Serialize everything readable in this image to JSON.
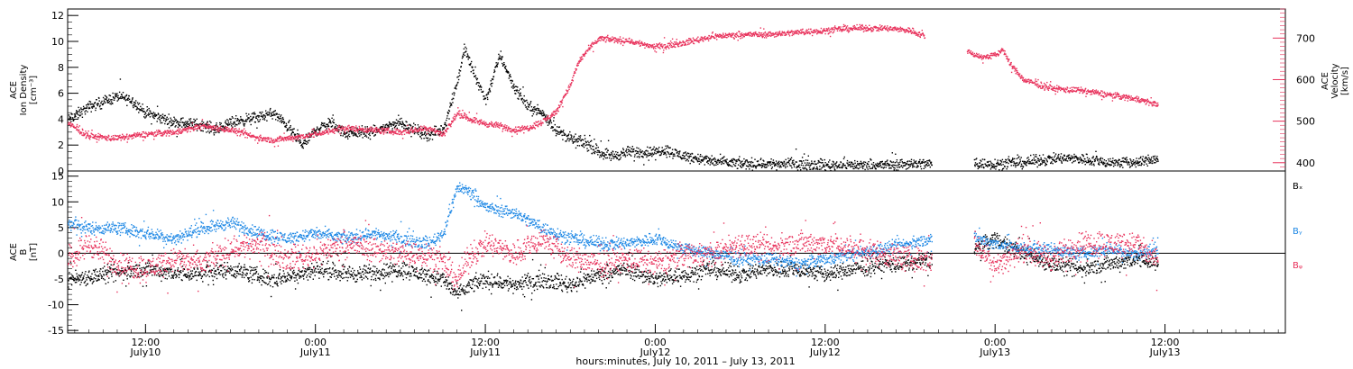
{
  "xlabel": "hours:minutes, July 10, 2011 – July 13, 2011",
  "chart_data": [
    {
      "type": "scatter",
      "panel": "plasma",
      "ylabel_lines": [
        "ACE",
        "Ion Density",
        "[cm⁻³]"
      ],
      "ylim": [
        0,
        12.5
      ],
      "yticks": [
        0,
        2,
        4,
        6,
        8,
        10,
        12
      ],
      "right_axis": {
        "ylabel_lines": [
          "ACE",
          "Velocity",
          "[km/s]"
        ],
        "ylim": [
          380,
          770
        ],
        "yticks": [
          400,
          500,
          600,
          700
        ]
      },
      "x_hours_range": [
        6.5,
        92.5
      ],
      "x_ticks": [
        {
          "hour": 12,
          "time": "12:00",
          "date": "July10"
        },
        {
          "hour": 24,
          "time": "0:00",
          "date": "July11"
        },
        {
          "hour": 36,
          "time": "12:00",
          "date": "July11"
        },
        {
          "hour": 48,
          "time": "0:00",
          "date": "July12"
        },
        {
          "hour": 60,
          "time": "12:00",
          "date": "July12"
        },
        {
          "hour": 72,
          "time": "0:00",
          "date": "July13"
        },
        {
          "hour": 84,
          "time": "12:00",
          "date": "July13"
        }
      ],
      "series": [
        {
          "color": "#000000",
          "axis": "left",
          "noise": 0.35,
          "points": [
            [
              6.5,
              4.0
            ],
            [
              8,
              5.0
            ],
            [
              10,
              5.8
            ],
            [
              11,
              5.5
            ],
            [
              12,
              4.5
            ],
            [
              14,
              3.8
            ],
            [
              16,
              3.6
            ],
            [
              17,
              3.2
            ],
            [
              18,
              3.8
            ],
            [
              20,
              4.2
            ],
            [
              21,
              4.5
            ],
            [
              22,
              3.5
            ],
            [
              23,
              2.0
            ],
            [
              24,
              3.2
            ],
            [
              25,
              3.8
            ],
            [
              26,
              3.0
            ],
            [
              28,
              3.0
            ],
            [
              29,
              3.5
            ],
            [
              30,
              3.8
            ],
            [
              31,
              3.2
            ],
            [
              32,
              2.8
            ],
            [
              33,
              3.3
            ],
            [
              34,
              7.0
            ],
            [
              34.5,
              9.5
            ],
            [
              35,
              8.0
            ],
            [
              36,
              5.5
            ],
            [
              37,
              9.0
            ],
            [
              38,
              6.5
            ],
            [
              39,
              5.0
            ],
            [
              40,
              4.5
            ],
            [
              41,
              3.2
            ],
            [
              42,
              2.5
            ],
            [
              43,
              2.2
            ],
            [
              44,
              1.5
            ],
            [
              45,
              1.2
            ],
            [
              46,
              1.5
            ],
            [
              48,
              1.5
            ],
            [
              48.5,
              1.7
            ],
            [
              50,
              1.2
            ],
            [
              52,
              0.8
            ],
            [
              54,
              0.6
            ],
            [
              56,
              0.6
            ],
            [
              58,
              0.6
            ],
            [
              60,
              0.5
            ],
            [
              62,
              0.5
            ],
            [
              64,
              0.5
            ],
            [
              66,
              0.6
            ],
            [
              67.5,
              0.6
            ]
          ],
          "gaps": [
            [
              67.5,
              70.5
            ]
          ],
          "points2": [
            [
              70.5,
              0.6
            ],
            [
              72,
              0.6
            ],
            [
              74,
              0.7
            ],
            [
              76,
              1.0
            ],
            [
              78,
              1.0
            ],
            [
              80,
              0.7
            ],
            [
              82,
              0.7
            ],
            [
              83.5,
              1.0
            ]
          ]
        },
        {
          "color": "#e8325c",
          "axis": "right",
          "noise": 6,
          "points": [
            [
              6.5,
              495
            ],
            [
              8,
              465
            ],
            [
              10,
              460
            ],
            [
              12,
              470
            ],
            [
              14,
              475
            ],
            [
              16,
              490
            ],
            [
              18,
              480
            ],
            [
              20,
              460
            ],
            [
              21,
              455
            ],
            [
              22,
              460
            ],
            [
              24,
              470
            ],
            [
              26,
              485
            ],
            [
              28,
              480
            ],
            [
              30,
              475
            ],
            [
              32,
              485
            ],
            [
              33,
              470
            ],
            [
              34,
              520
            ],
            [
              35,
              505
            ],
            [
              36,
              495
            ],
            [
              37,
              490
            ],
            [
              38,
              480
            ],
            [
              39,
              485
            ],
            [
              40,
              500
            ],
            [
              41,
              525
            ],
            [
              41.5,
              560
            ],
            [
              42,
              590
            ],
            [
              42.5,
              640
            ],
            [
              43,
              665
            ],
            [
              44,
              700
            ],
            [
              46,
              695
            ],
            [
              48,
              680
            ],
            [
              50,
              690
            ],
            [
              52,
              705
            ],
            [
              54,
              710
            ],
            [
              56,
              710
            ],
            [
              58,
              715
            ],
            [
              60,
              720
            ],
            [
              62,
              725
            ],
            [
              64,
              725
            ],
            [
              66,
              720
            ],
            [
              67,
              705
            ]
          ],
          "gaps": [
            [
              67,
              70
            ]
          ],
          "points2": [
            [
              70,
              670
            ],
            [
              71,
              655
            ],
            [
              72,
              660
            ],
            [
              72.5,
              675
            ],
            [
              73,
              640
            ],
            [
              74,
              600
            ],
            [
              76,
              580
            ],
            [
              78,
              575
            ],
            [
              80,
              565
            ],
            [
              82,
              555
            ],
            [
              83,
              545
            ],
            [
              83.5,
              540
            ]
          ]
        }
      ]
    },
    {
      "type": "scatter",
      "panel": "magnetic-field",
      "ylabel_lines": [
        "ACE",
        "B",
        "[nT]"
      ],
      "ylim": [
        -15.5,
        16
      ],
      "yticks": [
        -15,
        -10,
        -5,
        0,
        5,
        10,
        15
      ],
      "x_hours_range": [
        6.5,
        92.5
      ],
      "legend": [
        "Bₓ",
        "Bᵧ",
        "Bᵩ"
      ],
      "series": [
        {
          "name": "Bx",
          "color": "#000000",
          "noise": 1.3,
          "points": [
            [
              6.5,
              -5
            ],
            [
              9,
              -4
            ],
            [
              12,
              -3
            ],
            [
              15,
              -4
            ],
            [
              18,
              -3
            ],
            [
              21,
              -5
            ],
            [
              24,
              -3
            ],
            [
              27,
              -4
            ],
            [
              30,
              -3
            ],
            [
              33,
              -5
            ],
            [
              34,
              -8
            ],
            [
              35,
              -6
            ],
            [
              36,
              -5
            ],
            [
              38,
              -6
            ],
            [
              40,
              -5
            ],
            [
              42,
              -6
            ],
            [
              44,
              -4
            ],
            [
              46,
              -3
            ],
            [
              48,
              -5
            ],
            [
              50,
              -4
            ],
            [
              52,
              -3
            ],
            [
              54,
              -4
            ],
            [
              56,
              -3
            ],
            [
              58,
              -3
            ],
            [
              60,
              -4
            ],
            [
              62,
              -3
            ],
            [
              64,
              -2
            ],
            [
              66,
              -2
            ],
            [
              67.5,
              -1
            ]
          ],
          "gaps": [
            [
              67.5,
              70.5
            ]
          ],
          "points2": [
            [
              70.5,
              1
            ],
            [
              72,
              3
            ],
            [
              74,
              0
            ],
            [
              76,
              -2
            ],
            [
              78,
              -3
            ],
            [
              80,
              -2
            ],
            [
              82,
              -1
            ],
            [
              83.5,
              -2
            ]
          ]
        },
        {
          "name": "By",
          "color": "#1e88e5",
          "noise": 1.0,
          "points": [
            [
              6.5,
              6
            ],
            [
              8,
              5
            ],
            [
              10,
              5
            ],
            [
              12,
              4
            ],
            [
              14,
              3
            ],
            [
              16,
              5
            ],
            [
              18,
              6
            ],
            [
              20,
              4
            ],
            [
              22,
              3
            ],
            [
              24,
              4
            ],
            [
              26,
              3
            ],
            [
              28,
              4
            ],
            [
              30,
              3
            ],
            [
              32,
              2
            ],
            [
              33,
              4
            ],
            [
              34,
              13
            ],
            [
              35,
              12
            ],
            [
              36,
              9
            ],
            [
              38,
              8
            ],
            [
              40,
              5
            ],
            [
              42,
              3
            ],
            [
              44,
              2
            ],
            [
              46,
              2
            ],
            [
              48,
              3
            ],
            [
              50,
              1
            ],
            [
              52,
              0
            ],
            [
              54,
              -1
            ],
            [
              56,
              -1
            ],
            [
              58,
              -2
            ],
            [
              60,
              -1
            ],
            [
              62,
              0
            ],
            [
              64,
              1
            ],
            [
              66,
              2
            ],
            [
              67.5,
              3
            ]
          ],
          "gaps": [
            [
              67.5,
              70.5
            ]
          ],
          "points2": [
            [
              70.5,
              3
            ],
            [
              72,
              2
            ],
            [
              74,
              1
            ],
            [
              76,
              1
            ],
            [
              78,
              0
            ],
            [
              80,
              1
            ],
            [
              82,
              0
            ],
            [
              83.5,
              1
            ]
          ]
        },
        {
          "name": "Bz",
          "color": "#e8325c",
          "noise": 2.0,
          "points": [
            [
              6.5,
              -1
            ],
            [
              8,
              2
            ],
            [
              10,
              -2
            ],
            [
              12,
              -3
            ],
            [
              14,
              -1
            ],
            [
              16,
              -2
            ],
            [
              18,
              1
            ],
            [
              20,
              2
            ],
            [
              22,
              -1
            ],
            [
              24,
              0
            ],
            [
              26,
              2
            ],
            [
              28,
              1
            ],
            [
              30,
              0
            ],
            [
              32,
              0
            ],
            [
              33,
              -2
            ],
            [
              34,
              -5
            ],
            [
              35,
              0
            ],
            [
              36,
              2
            ],
            [
              38,
              0
            ],
            [
              40,
              3
            ],
            [
              42,
              -1
            ],
            [
              44,
              -2
            ],
            [
              46,
              -1
            ],
            [
              48,
              -2
            ],
            [
              50,
              0
            ],
            [
              52,
              0
            ],
            [
              54,
              2
            ],
            [
              56,
              1
            ],
            [
              58,
              2
            ],
            [
              60,
              2
            ],
            [
              62,
              1
            ],
            [
              64,
              0
            ],
            [
              66,
              -1
            ],
            [
              67.5,
              -1
            ]
          ],
          "gaps": [
            [
              67.5,
              70.5
            ]
          ],
          "points2": [
            [
              70.5,
              2
            ],
            [
              72,
              -2
            ],
            [
              74,
              1
            ],
            [
              76,
              -1
            ],
            [
              78,
              2
            ],
            [
              80,
              2
            ],
            [
              82,
              2
            ],
            [
              83.5,
              -2
            ]
          ]
        }
      ]
    }
  ]
}
